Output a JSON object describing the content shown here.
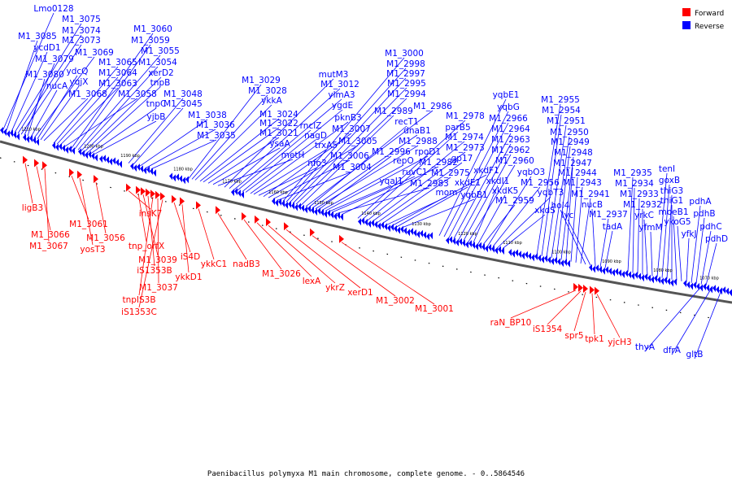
{
  "legend": [
    {
      "label": "Forward",
      "color": "#ff0000"
    },
    {
      "label": "Reverse",
      "color": "#0000ff"
    }
  ],
  "caption": "Paenibacillus polymyxa M1 main chromosome, complete genome. - 0..5864546",
  "colors": {
    "forward": "#ff0000",
    "reverse": "#0000ff",
    "backbone": "#555555"
  },
  "kbp_ticks": [
    "1210 kbp",
    "1200 kbp",
    "1190 kbp",
    "1180 kbp",
    "1170 kbp",
    "1160 kbp",
    "1150 kbp",
    "1140 kbp",
    "1130 kbp",
    "1120 kbp",
    "1110 kbp",
    "1100 kbp",
    "1090 kbp",
    "1080 kbp",
    "1070 kbp"
  ],
  "reverse_labels": [
    "Lmo0128",
    "M1_3085",
    "ycdD1",
    "M1_3075",
    "M1_3074",
    "M1_3073",
    "M1_3079",
    "M1_3080",
    "nucA",
    "M1_3069",
    "ydcQ",
    "yqjX",
    "M1_3068",
    "M1_3065",
    "M1_3064",
    "M1_3063",
    "M1_3058",
    "M1_3060",
    "M1_3059",
    "M1_3055",
    "M1_3054",
    "xerD2",
    "tnpB",
    "tnpC",
    "yjbB",
    "M1_3048",
    "M1_3045",
    "M1_3038",
    "M1_3036",
    "M1_3035",
    "M1_3029",
    "M1_3028",
    "ykkA",
    "M1_3024",
    "M1_3022",
    "M1_3021",
    "ysaA",
    "metH",
    "mutM3",
    "M1_3012",
    "ylmA3",
    "rnclZ",
    "ygdE",
    "nagD",
    "pknB3",
    "trxA5",
    "nfo3",
    "M1_3007",
    "M1_3005",
    "M1_3006",
    "M1_3004",
    "M1_3000",
    "M1_2998",
    "M1_2997",
    "M1_2995",
    "M1_2994",
    "M1_2989",
    "M1_2986",
    "recT1",
    "dnaB1",
    "M1_2988",
    "M1_2996",
    "repO",
    "rpoD1",
    "yqaJ1",
    "ruvC1",
    "M1_2983",
    "M1_2982",
    "M1_2978",
    "parB5",
    "M1_2974",
    "M1_2973",
    "gp17",
    "M1_2975",
    "mom",
    "xkdF1",
    "xkdE1",
    "yqbB1",
    "yqbE1",
    "yqbG",
    "M1_2966",
    "M1_2964",
    "M1_2963",
    "M1_2962",
    "M1_2960",
    "xkdI1",
    "xkdK5",
    "M1_2959",
    "yqbO3",
    "M1_2956",
    "yqbT3",
    "xkdS",
    "M1_2955",
    "M1_2954",
    "M1_2951",
    "M1_2950",
    "M1_2949",
    "M1_2948",
    "M1_2947",
    "M1_2944",
    "M1_2943",
    "M1_2941",
    "hol4",
    "lyc",
    "nucB",
    "M1_2937",
    "tadA",
    "M1_2935",
    "M1_2934",
    "M1_2933",
    "M1_2932",
    "yrkC",
    "yfmM",
    "tenI",
    "goxB",
    "thiG3",
    "thiG1",
    "moeB1",
    "ykoG5",
    "yfkJ",
    "pdhA",
    "pdhB",
    "pdhC",
    "pdhD",
    "thyA",
    "dfrA",
    "gltB"
  ],
  "forward_labels": [
    "ligB3",
    "M1_3066",
    "M1_3067",
    "M1_3061",
    "yosT3",
    "M1_3056",
    "insK7",
    "tnp_orfX",
    "M1_3039",
    "iS1353B",
    "tnpIS3B",
    "M1_3037",
    "iS1353C",
    "iS4D",
    "ykkD1",
    "ykkC1",
    "nadB3",
    "M1_3026",
    "lexA",
    "ykrZ",
    "xerD1",
    "M1_3002",
    "M1_3001",
    "raN_BP10",
    "iS1354",
    "spr5",
    "tpk1",
    "yjcH3"
  ]
}
